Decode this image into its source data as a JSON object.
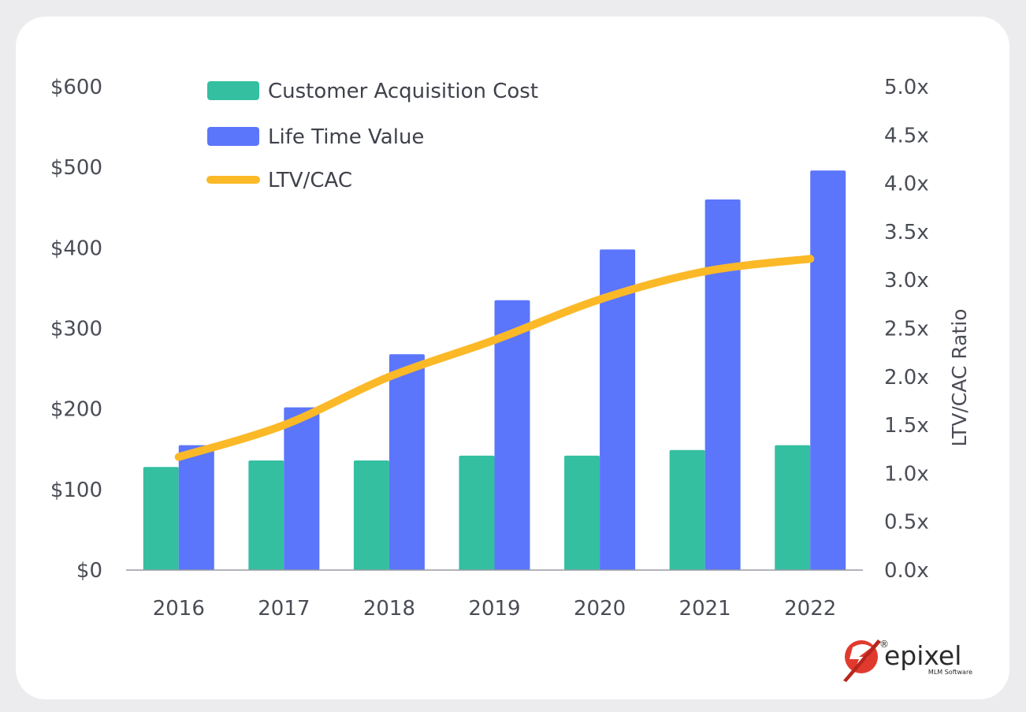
{
  "chart_data": {
    "type": "bar",
    "categories": [
      "2016",
      "2017",
      "2018",
      "2019",
      "2020",
      "2021",
      "2022"
    ],
    "series": [
      {
        "name": "Customer Acquisition Cost",
        "type": "bar",
        "axis": "left",
        "color": "#34bfa0",
        "values": [
          128,
          136,
          136,
          142,
          142,
          149,
          155
        ]
      },
      {
        "name": "Life Time Value",
        "type": "bar",
        "axis": "left",
        "color": "#5b76fb",
        "values": [
          155,
          202,
          268,
          335,
          398,
          460,
          496
        ]
      },
      {
        "name": "LTV/CAC",
        "type": "line",
        "axis": "right",
        "color": "#fbb928",
        "values": [
          1.17,
          1.5,
          2.0,
          2.38,
          2.8,
          3.09,
          3.22
        ]
      }
    ],
    "y_left": {
      "min": 0,
      "max": 600,
      "tick_labels": [
        "$0",
        "$100",
        "$200",
        "$300",
        "$400",
        "$500",
        "$600"
      ]
    },
    "y_right": {
      "min": 0,
      "max": 5,
      "label": "LTV/CAC Ratio",
      "tick_labels": [
        "0.0x",
        "0.5x",
        "1.0x",
        "1.5x",
        "2.0x",
        "2.5x",
        "3.0x",
        "3.5x",
        "4.0x",
        "4.5x",
        "5.0x"
      ]
    },
    "title": "",
    "xlabel": "",
    "grid": false,
    "legend_position": "top-left"
  },
  "logo": {
    "name": "epixel",
    "tagline": "MLM Software",
    "registered_mark": "®",
    "icon": "epixel-logo-icon"
  }
}
